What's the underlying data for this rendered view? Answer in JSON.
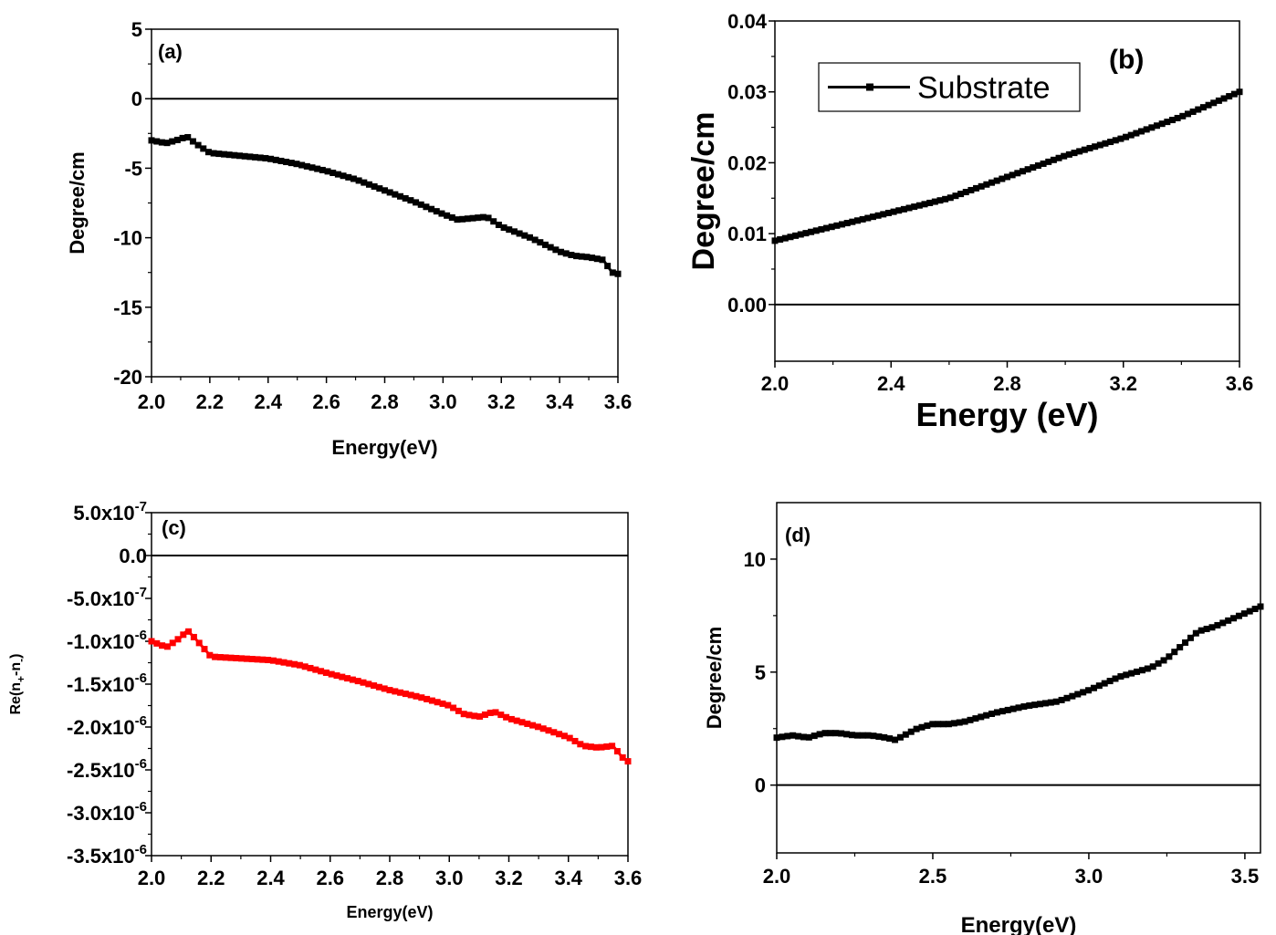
{
  "chart_data": [
    {
      "type": "line",
      "panel_label": "(a)",
      "xlabel": "Energy(eV)",
      "ylabel": "Degree/cm",
      "xlim": [
        2.0,
        3.6
      ],
      "ylim": [
        -20,
        5
      ],
      "xticks": [
        "2.0",
        "2.2",
        "2.4",
        "2.6",
        "2.8",
        "3.0",
        "3.2",
        "3.4",
        "3.6"
      ],
      "yticks": [
        "5",
        "0",
        "-5",
        "-10",
        "-15",
        "-20"
      ],
      "reference_line_y": 0,
      "series": [
        {
          "color": "#000000",
          "x": [
            2.0,
            2.05,
            2.1,
            2.12,
            2.15,
            2.2,
            2.3,
            2.4,
            2.5,
            2.6,
            2.7,
            2.8,
            2.9,
            3.0,
            3.05,
            3.1,
            3.15,
            3.2,
            3.3,
            3.4,
            3.45,
            3.5,
            3.55,
            3.58,
            3.6
          ],
          "y": [
            -3.0,
            -3.2,
            -2.9,
            -2.7,
            -3.2,
            -3.9,
            -4.1,
            -4.3,
            -4.7,
            -5.2,
            -5.8,
            -6.6,
            -7.4,
            -8.3,
            -8.7,
            -8.6,
            -8.5,
            -9.2,
            -10.0,
            -11.0,
            -11.3,
            -11.4,
            -11.6,
            -12.5,
            -12.6
          ]
        }
      ]
    },
    {
      "type": "line",
      "panel_label": "(b)",
      "xlabel": "Energy (eV)",
      "ylabel": "Degree/cm",
      "xlim": [
        2.0,
        3.6
      ],
      "ylim": [
        -0.008,
        0.04
      ],
      "xticks": [
        "2.0",
        "2.4",
        "2.8",
        "3.2",
        "3.6"
      ],
      "yticks": [
        "0.04",
        "0.03",
        "0.02",
        "0.01",
        "0.00"
      ],
      "reference_line_y": 0,
      "legend": "top-left",
      "series": [
        {
          "name": "Substrate",
          "color": "#000000",
          "x": [
            2.0,
            2.2,
            2.4,
            2.6,
            2.8,
            3.0,
            3.2,
            3.4,
            3.6
          ],
          "y": [
            0.009,
            0.011,
            0.013,
            0.015,
            0.018,
            0.021,
            0.0235,
            0.0265,
            0.03
          ]
        }
      ]
    },
    {
      "type": "line",
      "panel_label": "(c)",
      "xlabel": "Energy(eV)",
      "ylabel": "Re(n+-n-)",
      "xlim": [
        2.0,
        3.6
      ],
      "ylim": [
        -3.5e-06,
        5e-07
      ],
      "xticks": [
        "2.0",
        "2.2",
        "2.4",
        "2.6",
        "2.8",
        "3.0",
        "3.2",
        "3.4",
        "3.6"
      ],
      "yticks": [
        {
          "mantissa": "5.0x10",
          "exp": "-7"
        },
        {
          "mantissa": "0.0",
          "exp": ""
        },
        {
          "mantissa": "-5.0x10",
          "exp": "-7"
        },
        {
          "mantissa": "-1.0x10",
          "exp": "-6"
        },
        {
          "mantissa": "-1.5x10",
          "exp": "-6"
        },
        {
          "mantissa": "-2.0x10",
          "exp": "-6"
        },
        {
          "mantissa": "-2.5x10",
          "exp": "-6"
        },
        {
          "mantissa": "-3.0x10",
          "exp": "-6"
        },
        {
          "mantissa": "-3.5x10",
          "exp": "-6"
        }
      ],
      "reference_line_y": 0,
      "series": [
        {
          "color": "#ff0000",
          "x": [
            2.0,
            2.05,
            2.1,
            2.12,
            2.15,
            2.2,
            2.3,
            2.4,
            2.5,
            2.6,
            2.7,
            2.8,
            2.9,
            3.0,
            3.05,
            3.1,
            3.15,
            3.2,
            3.3,
            3.4,
            3.45,
            3.5,
            3.55,
            3.58,
            3.6
          ],
          "y": [
            -1e-06,
            -1.07e-06,
            -9.5e-07,
            -8.7e-07,
            -9.8e-07,
            -1.18e-06,
            -1.2e-06,
            -1.22e-06,
            -1.28e-06,
            -1.38e-06,
            -1.47e-06,
            -1.57e-06,
            -1.65e-06,
            -1.75e-06,
            -1.85e-06,
            -1.88e-06,
            -1.82e-06,
            -1.9e-06,
            -2e-06,
            -2.12e-06,
            -2.22e-06,
            -2.24e-06,
            -2.22e-06,
            -2.35e-06,
            -2.4e-06
          ]
        }
      ]
    },
    {
      "type": "line",
      "panel_label": "(d)",
      "xlabel": "Energy(eV)",
      "ylabel": "Degree/cm",
      "xlim": [
        2.0,
        3.55
      ],
      "ylim": [
        -3,
        12.5
      ],
      "xticks": [
        "2.0",
        "2.5",
        "3.0",
        "3.5"
      ],
      "yticks": [
        "10",
        "5",
        "0"
      ],
      "reference_line_y": 0,
      "series": [
        {
          "color": "#000000",
          "x": [
            2.0,
            2.05,
            2.1,
            2.15,
            2.2,
            2.25,
            2.3,
            2.35,
            2.38,
            2.45,
            2.5,
            2.55,
            2.6,
            2.7,
            2.8,
            2.9,
            3.0,
            3.05,
            3.1,
            3.15,
            3.2,
            3.25,
            3.3,
            3.35,
            3.4,
            3.45,
            3.5,
            3.55
          ],
          "y": [
            2.1,
            2.2,
            2.1,
            2.3,
            2.3,
            2.2,
            2.2,
            2.1,
            2.0,
            2.5,
            2.7,
            2.7,
            2.8,
            3.2,
            3.5,
            3.7,
            4.2,
            4.5,
            4.8,
            5.0,
            5.2,
            5.6,
            6.2,
            6.8,
            7.0,
            7.3,
            7.6,
            7.9
          ]
        }
      ]
    }
  ]
}
